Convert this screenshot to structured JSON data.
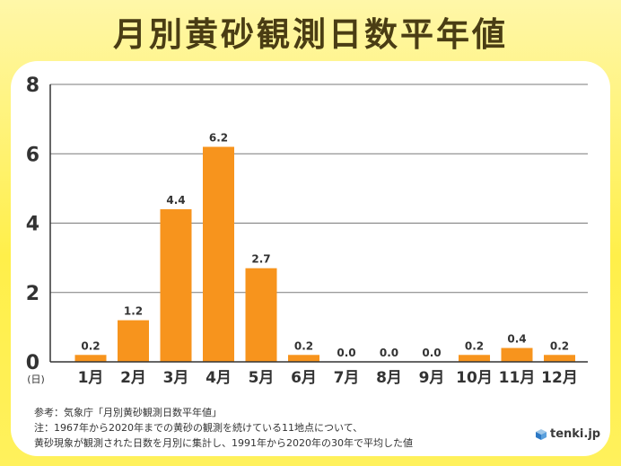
{
  "title": "月別黄砂観測日数平年値",
  "chart_data": {
    "type": "bar",
    "categories": [
      "1月",
      "2月",
      "3月",
      "4月",
      "5月",
      "6月",
      "7月",
      "8月",
      "9月",
      "10月",
      "11月",
      "12月"
    ],
    "values": [
      0.2,
      1.2,
      4.4,
      6.2,
      2.7,
      0.2,
      0.0,
      0.0,
      0.0,
      0.2,
      0.4,
      0.2
    ],
    "data_labels": [
      "0.2",
      "1.2",
      "4.4",
      "6.2",
      "2.7",
      "0.2",
      "0.0",
      "0.0",
      "0.0",
      "0.2",
      "0.4",
      "0.2"
    ],
    "ylim": [
      0,
      8
    ],
    "yticks": [
      0,
      2,
      4,
      6,
      8
    ],
    "ylabel": "(日)",
    "grid": true,
    "colors": {
      "bar": "#f7941d",
      "grid": "#7a7a7a",
      "text": "#333333"
    }
  },
  "notes": {
    "line1": "参考：気象庁「月別黄砂観測日数平年値」",
    "line2": "注：1967年から2020年までの黄砂の観測を続けている11地点について、",
    "line3": "黄砂現象が観測された日数を月別に集計し、1991年から2020年の30年で平均した値"
  },
  "brand": {
    "name": "tenki.jp",
    "icon": "cube-logo-icon"
  }
}
